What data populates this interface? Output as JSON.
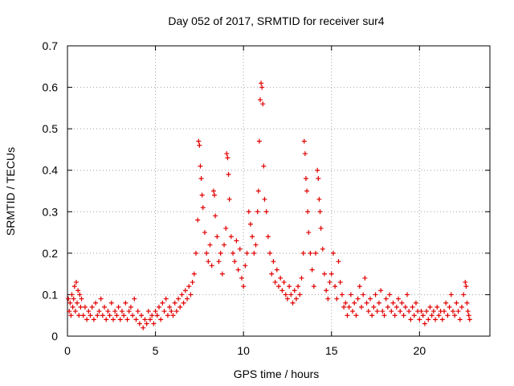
{
  "chart_data": {
    "type": "scatter",
    "title": "Day 052 of 2017, SRMTID for receiver sur4",
    "xlabel": "GPS time / hours",
    "ylabel": "SRMTID / TECUs",
    "xlim": [
      0,
      24
    ],
    "ylim": [
      0,
      0.7
    ],
    "xticks": [
      0,
      5,
      10,
      15,
      20
    ],
    "yticks": [
      0,
      0.1,
      0.2,
      0.3,
      0.4,
      0.5,
      0.6,
      0.7
    ],
    "xtick_labels": [
      "0",
      "5",
      "10",
      "15",
      "20"
    ],
    "ytick_labels": [
      "0",
      "0.1",
      "0.2",
      "0.3",
      "0.4",
      "0.5",
      "0.6",
      "0.7"
    ],
    "grid": true,
    "marker": "+",
    "color": "#e00000",
    "series": [
      {
        "name": "SRMTID",
        "points": [
          [
            0.05,
            0.09
          ],
          [
            0.1,
            0.06
          ],
          [
            0.15,
            0.08
          ],
          [
            0.2,
            0.05
          ],
          [
            0.25,
            0.1
          ],
          [
            0.3,
            0.07
          ],
          [
            0.35,
            0.09
          ],
          [
            0.4,
            0.12
          ],
          [
            0.45,
            0.06
          ],
          [
            0.5,
            0.13
          ],
          [
            0.55,
            0.08
          ],
          [
            0.6,
            0.11
          ],
          [
            0.65,
            0.05
          ],
          [
            0.7,
            0.1
          ],
          [
            0.75,
            0.07
          ],
          [
            0.8,
            0.09
          ],
          [
            0.9,
            0.05
          ],
          [
            1.0,
            0.07
          ],
          [
            1.1,
            0.04
          ],
          [
            1.2,
            0.06
          ],
          [
            1.3,
            0.05
          ],
          [
            1.4,
            0.07
          ],
          [
            1.5,
            0.04
          ],
          [
            1.6,
            0.08
          ],
          [
            1.7,
            0.05
          ],
          [
            1.8,
            0.06
          ],
          [
            1.9,
            0.09
          ],
          [
            2.0,
            0.05
          ],
          [
            2.1,
            0.07
          ],
          [
            2.2,
            0.04
          ],
          [
            2.3,
            0.06
          ],
          [
            2.4,
            0.05
          ],
          [
            2.5,
            0.08
          ],
          [
            2.6,
            0.04
          ],
          [
            2.7,
            0.06
          ],
          [
            2.8,
            0.05
          ],
          [
            2.9,
            0.07
          ],
          [
            3.0,
            0.04
          ],
          [
            3.1,
            0.06
          ],
          [
            3.2,
            0.05
          ],
          [
            3.3,
            0.08
          ],
          [
            3.4,
            0.04
          ],
          [
            3.5,
            0.06
          ],
          [
            3.6,
            0.07
          ],
          [
            3.7,
            0.05
          ],
          [
            3.8,
            0.09
          ],
          [
            3.9,
            0.04
          ],
          [
            4.0,
            0.06
          ],
          [
            4.1,
            0.03
          ],
          [
            4.2,
            0.05
          ],
          [
            4.3,
            0.02
          ],
          [
            4.4,
            0.04
          ],
          [
            4.5,
            0.03
          ],
          [
            4.6,
            0.06
          ],
          [
            4.7,
            0.04
          ],
          [
            4.8,
            0.05
          ],
          [
            4.9,
            0.03
          ],
          [
            5.0,
            0.06
          ],
          [
            5.1,
            0.05
          ],
          [
            5.2,
            0.07
          ],
          [
            5.3,
            0.04
          ],
          [
            5.4,
            0.08
          ],
          [
            5.5,
            0.06
          ],
          [
            5.6,
            0.09
          ],
          [
            5.7,
            0.05
          ],
          [
            5.8,
            0.07
          ],
          [
            5.9,
            0.06
          ],
          [
            6.0,
            0.05
          ],
          [
            6.1,
            0.08
          ],
          [
            6.2,
            0.06
          ],
          [
            6.3,
            0.09
          ],
          [
            6.4,
            0.07
          ],
          [
            6.5,
            0.1
          ],
          [
            6.6,
            0.08
          ],
          [
            6.7,
            0.11
          ],
          [
            6.8,
            0.09
          ],
          [
            6.9,
            0.12
          ],
          [
            7.0,
            0.1
          ],
          [
            7.1,
            0.13
          ],
          [
            7.2,
            0.15
          ],
          [
            7.3,
            0.2
          ],
          [
            7.4,
            0.28
          ],
          [
            7.45,
            0.47
          ],
          [
            7.5,
            0.46
          ],
          [
            7.55,
            0.41
          ],
          [
            7.6,
            0.38
          ],
          [
            7.65,
            0.34
          ],
          [
            7.7,
            0.31
          ],
          [
            7.8,
            0.25
          ],
          [
            7.9,
            0.2
          ],
          [
            8.0,
            0.18
          ],
          [
            8.1,
            0.22
          ],
          [
            8.2,
            0.17
          ],
          [
            8.3,
            0.35
          ],
          [
            8.35,
            0.34
          ],
          [
            8.4,
            0.29
          ],
          [
            8.5,
            0.24
          ],
          [
            8.6,
            0.18
          ],
          [
            8.7,
            0.2
          ],
          [
            8.8,
            0.15
          ],
          [
            8.9,
            0.22
          ],
          [
            9.0,
            0.26
          ],
          [
            9.05,
            0.44
          ],
          [
            9.1,
            0.43
          ],
          [
            9.15,
            0.39
          ],
          [
            9.2,
            0.33
          ],
          [
            9.3,
            0.24
          ],
          [
            9.4,
            0.2
          ],
          [
            9.5,
            0.18
          ],
          [
            9.6,
            0.23
          ],
          [
            9.7,
            0.16
          ],
          [
            9.8,
            0.21
          ],
          [
            9.9,
            0.14
          ],
          [
            10.0,
            0.12
          ],
          [
            10.1,
            0.17
          ],
          [
            10.2,
            0.2
          ],
          [
            10.3,
            0.3
          ],
          [
            10.4,
            0.27
          ],
          [
            10.5,
            0.24
          ],
          [
            10.6,
            0.2
          ],
          [
            10.7,
            0.22
          ],
          [
            10.8,
            0.3
          ],
          [
            10.85,
            0.35
          ],
          [
            10.9,
            0.47
          ],
          [
            10.95,
            0.57
          ],
          [
            11.0,
            0.61
          ],
          [
            11.05,
            0.6
          ],
          [
            11.1,
            0.56
          ],
          [
            11.15,
            0.41
          ],
          [
            11.2,
            0.33
          ],
          [
            11.3,
            0.3
          ],
          [
            11.4,
            0.24
          ],
          [
            11.5,
            0.2
          ],
          [
            11.6,
            0.15
          ],
          [
            11.7,
            0.18
          ],
          [
            11.8,
            0.13
          ],
          [
            11.9,
            0.16
          ],
          [
            12.0,
            0.12
          ],
          [
            12.1,
            0.14
          ],
          [
            12.2,
            0.11
          ],
          [
            12.3,
            0.13
          ],
          [
            12.4,
            0.1
          ],
          [
            12.5,
            0.09
          ],
          [
            12.6,
            0.12
          ],
          [
            12.7,
            0.1
          ],
          [
            12.8,
            0.08
          ],
          [
            12.9,
            0.11
          ],
          [
            13.0,
            0.09
          ],
          [
            13.1,
            0.12
          ],
          [
            13.2,
            0.1
          ],
          [
            13.3,
            0.14
          ],
          [
            13.4,
            0.2
          ],
          [
            13.45,
            0.47
          ],
          [
            13.5,
            0.44
          ],
          [
            13.55,
            0.38
          ],
          [
            13.6,
            0.35
          ],
          [
            13.65,
            0.3
          ],
          [
            13.7,
            0.25
          ],
          [
            13.8,
            0.2
          ],
          [
            13.9,
            0.16
          ],
          [
            14.0,
            0.12
          ],
          [
            14.1,
            0.2
          ],
          [
            14.2,
            0.4
          ],
          [
            14.25,
            0.38
          ],
          [
            14.3,
            0.33
          ],
          [
            14.35,
            0.3
          ],
          [
            14.4,
            0.26
          ],
          [
            14.5,
            0.21
          ],
          [
            14.6,
            0.15
          ],
          [
            14.7,
            0.11
          ],
          [
            14.8,
            0.09
          ],
          [
            14.9,
            0.13
          ],
          [
            15.0,
            0.15
          ],
          [
            15.1,
            0.2
          ],
          [
            15.2,
            0.12
          ],
          [
            15.3,
            0.09
          ],
          [
            15.4,
            0.18
          ],
          [
            15.5,
            0.13
          ],
          [
            15.6,
            0.1
          ],
          [
            15.7,
            0.07
          ],
          [
            15.8,
            0.08
          ],
          [
            15.9,
            0.05
          ],
          [
            16.0,
            0.07
          ],
          [
            16.1,
            0.1
          ],
          [
            16.2,
            0.06
          ],
          [
            16.3,
            0.08
          ],
          [
            16.4,
            0.05
          ],
          [
            16.5,
            0.09
          ],
          [
            16.6,
            0.12
          ],
          [
            16.7,
            0.07
          ],
          [
            16.8,
            0.1
          ],
          [
            16.9,
            0.14
          ],
          [
            17.0,
            0.08
          ],
          [
            17.1,
            0.06
          ],
          [
            17.2,
            0.09
          ],
          [
            17.3,
            0.05
          ],
          [
            17.4,
            0.07
          ],
          [
            17.5,
            0.1
          ],
          [
            17.6,
            0.06
          ],
          [
            17.7,
            0.08
          ],
          [
            17.8,
            0.11
          ],
          [
            17.9,
            0.06
          ],
          [
            18.0,
            0.05
          ],
          [
            18.1,
            0.09
          ],
          [
            18.2,
            0.07
          ],
          [
            18.3,
            0.1
          ],
          [
            18.4,
            0.06
          ],
          [
            18.5,
            0.08
          ],
          [
            18.6,
            0.05
          ],
          [
            18.7,
            0.07
          ],
          [
            18.8,
            0.09
          ],
          [
            18.9,
            0.06
          ],
          [
            19.0,
            0.08
          ],
          [
            19.1,
            0.05
          ],
          [
            19.2,
            0.07
          ],
          [
            19.3,
            0.1
          ],
          [
            19.4,
            0.06
          ],
          [
            19.5,
            0.04
          ],
          [
            19.6,
            0.07
          ],
          [
            19.7,
            0.05
          ],
          [
            19.8,
            0.08
          ],
          [
            19.9,
            0.06
          ],
          [
            20.0,
            0.04
          ],
          [
            20.1,
            0.06
          ],
          [
            20.2,
            0.05
          ],
          [
            20.3,
            0.03
          ],
          [
            20.4,
            0.06
          ],
          [
            20.5,
            0.04
          ],
          [
            20.6,
            0.07
          ],
          [
            20.7,
            0.05
          ],
          [
            20.8,
            0.06
          ],
          [
            20.9,
            0.04
          ],
          [
            21.0,
            0.07
          ],
          [
            21.1,
            0.05
          ],
          [
            21.2,
            0.06
          ],
          [
            21.3,
            0.04
          ],
          [
            21.4,
            0.06
          ],
          [
            21.5,
            0.08
          ],
          [
            21.6,
            0.05
          ],
          [
            21.7,
            0.07
          ],
          [
            21.8,
            0.1
          ],
          [
            21.9,
            0.06
          ],
          [
            22.0,
            0.05
          ],
          [
            22.1,
            0.08
          ],
          [
            22.2,
            0.06
          ],
          [
            22.3,
            0.04
          ],
          [
            22.4,
            0.07
          ],
          [
            22.5,
            0.1
          ],
          [
            22.6,
            0.13
          ],
          [
            22.65,
            0.12
          ],
          [
            22.7,
            0.08
          ],
          [
            22.75,
            0.06
          ],
          [
            22.8,
            0.05
          ],
          [
            22.85,
            0.04
          ]
        ]
      }
    ]
  }
}
